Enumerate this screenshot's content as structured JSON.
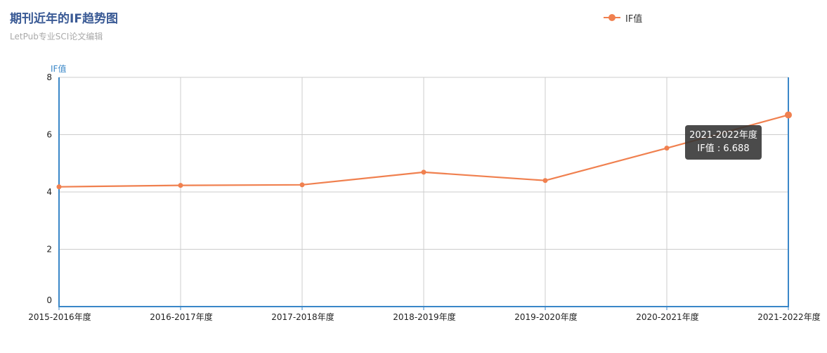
{
  "chart_data": {
    "type": "line",
    "title": "期刊近年的IF趋势图",
    "subtitle": "LetPub专业SCI论文编辑",
    "ylabel": "IF值",
    "xlabel": "",
    "categories": [
      "2015-2016年度",
      "2016-2017年度",
      "2017-2018年度",
      "2018-2019年度",
      "2019-2020年度",
      "2020-2021年度",
      "2021-2022年度"
    ],
    "series": [
      {
        "name": "IF值",
        "values": [
          4.18,
          4.23,
          4.25,
          4.69,
          4.4,
          5.53,
          6.688
        ]
      }
    ],
    "ylim": [
      0,
      8
    ],
    "yticks": [
      "0",
      "2",
      "4",
      "6",
      "8"
    ],
    "grid": true,
    "legend_position": "top-right",
    "colors": {
      "line": "#f0804f",
      "axis": "#3a87c8",
      "grid": "#cccccc",
      "title": "#3a5a95",
      "y_axis_name": "#3a87c8"
    },
    "tooltip": {
      "category": "2021-2022年度",
      "series_name": "IF值",
      "separator": " : ",
      "value": "6.688"
    }
  }
}
